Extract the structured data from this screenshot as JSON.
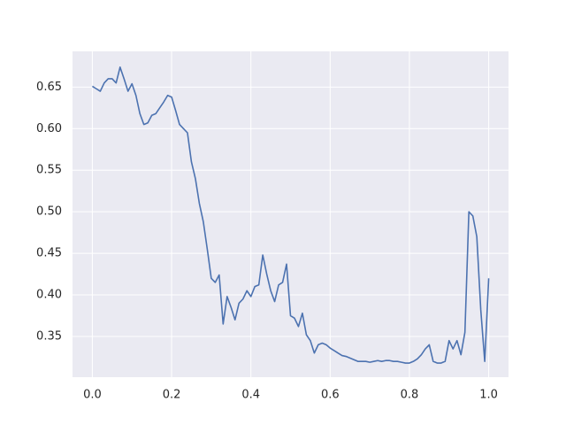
{
  "chart_data": {
    "type": "line",
    "x": [
      0,
      0.01,
      0.02,
      0.03,
      0.04,
      0.05,
      0.06,
      0.07,
      0.08,
      0.09,
      0.1,
      0.11,
      0.12,
      0.13,
      0.14,
      0.15,
      0.16,
      0.17,
      0.18,
      0.19,
      0.2,
      0.21,
      0.22,
      0.23,
      0.24,
      0.25,
      0.26,
      0.27,
      0.28,
      0.29,
      0.3,
      0.31,
      0.32,
      0.33,
      0.34,
      0.35,
      0.36,
      0.37,
      0.38,
      0.39,
      0.4,
      0.41,
      0.42,
      0.43,
      0.44,
      0.45,
      0.46,
      0.47,
      0.48,
      0.49,
      0.5,
      0.51,
      0.52,
      0.53,
      0.54,
      0.55,
      0.56,
      0.57,
      0.58,
      0.59,
      0.6,
      0.61,
      0.62,
      0.63,
      0.64,
      0.65,
      0.66,
      0.67,
      0.68,
      0.69,
      0.7,
      0.71,
      0.72,
      0.73,
      0.74,
      0.75,
      0.76,
      0.77,
      0.78,
      0.79,
      0.8,
      0.81,
      0.82,
      0.83,
      0.84,
      0.85,
      0.86,
      0.87,
      0.88,
      0.89,
      0.9,
      0.91,
      0.92,
      0.93,
      0.94,
      0.95,
      0.96,
      0.97,
      0.98,
      0.99,
      1.0
    ],
    "series": [
      {
        "color": "#4c72b0",
        "values": [
          0.651,
          0.648,
          0.645,
          0.655,
          0.66,
          0.66,
          0.655,
          0.674,
          0.66,
          0.645,
          0.654,
          0.64,
          0.618,
          0.605,
          0.607,
          0.616,
          0.618,
          0.625,
          0.632,
          0.64,
          0.638,
          0.622,
          0.605,
          0.6,
          0.595,
          0.56,
          0.54,
          0.51,
          0.488,
          0.455,
          0.42,
          0.415,
          0.424,
          0.365,
          0.398,
          0.385,
          0.37,
          0.39,
          0.395,
          0.405,
          0.398,
          0.41,
          0.412,
          0.448,
          0.425,
          0.405,
          0.392,
          0.412,
          0.415,
          0.437,
          0.375,
          0.372,
          0.362,
          0.378,
          0.352,
          0.345,
          0.33,
          0.34,
          0.342,
          0.34,
          0.336,
          0.333,
          0.33,
          0.327,
          0.326,
          0.324,
          0.322,
          0.32,
          0.32,
          0.32,
          0.319,
          0.32,
          0.321,
          0.32,
          0.321,
          0.321,
          0.32,
          0.32,
          0.319,
          0.318,
          0.318,
          0.32,
          0.323,
          0.328,
          0.335,
          0.34,
          0.32,
          0.318,
          0.318,
          0.32,
          0.345,
          0.335,
          0.345,
          0.328,
          0.355,
          0.5,
          0.495,
          0.47,
          0.382,
          0.32,
          0.42
        ]
      }
    ],
    "xlim": [
      -0.05,
      1.05
    ],
    "ylim": [
      0.301,
      0.693
    ],
    "xticks": [
      {
        "value": 0,
        "label": "0.0"
      },
      0.2,
      0.4,
      0.6,
      0.8,
      {
        "value": 1,
        "label": "1.0"
      }
    ],
    "yticks": [
      0.35,
      {
        "value": 0.4,
        "label": "0.40"
      },
      0.45,
      {
        "value": 0.5,
        "label": "0.50"
      },
      0.55,
      {
        "value": 0.6,
        "label": "0.60"
      },
      0.65
    ],
    "grid": true
  }
}
